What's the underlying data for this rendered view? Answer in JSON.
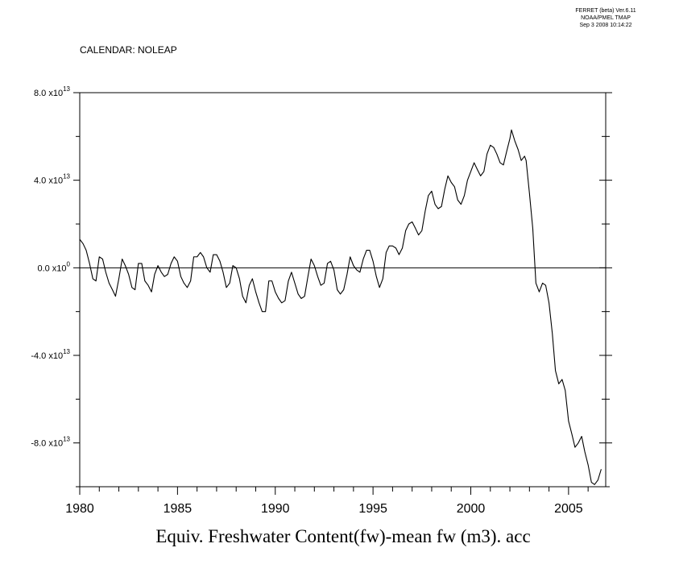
{
  "header": {
    "version_line1": "FERRET (beta) Ver.6.11",
    "version_line2": "NOAA/PMEL TMAP",
    "version_line3": "Sep 3 2008 10:14:22",
    "calendar_label": "CALENDAR: NOLEAP"
  },
  "colors": {
    "line": "#000000",
    "background": "#ffffff"
  },
  "chart_data": {
    "type": "line",
    "title": "Equiv. Freshwater Content(fw)-mean fw (m3). acc",
    "xlim": [
      1980.0,
      2006.9
    ],
    "ylim": [
      -100000000000000.0,
      80000000000000.0
    ],
    "grid": false,
    "zero_line": true,
    "x_ticks": [
      1980,
      1985,
      1990,
      1995,
      2000,
      2005
    ],
    "y_tick_labels": [
      {
        "value": 80000000000000.0,
        "mant": "8.0 x10",
        "exp": "13"
      },
      {
        "value": 40000000000000.0,
        "mant": "4.0 x10",
        "exp": "13"
      },
      {
        "value": 0,
        "mant": "0.0 x10",
        "exp": "0"
      },
      {
        "value": -40000000000000.0,
        "mant": "-4.0 x10",
        "exp": "13"
      },
      {
        "value": -80000000000000.0,
        "mant": "-8.0 x10",
        "exp": "13"
      }
    ],
    "series": [
      {
        "points": [
          [
            1980.0,
            13000000000000.0
          ],
          [
            1980.17,
            11000000000000.0
          ],
          [
            1980.33,
            8000000000000.0
          ],
          [
            1980.5,
            2000000000000.0
          ],
          [
            1980.67,
            -5000000000000.0
          ],
          [
            1980.83,
            -6000000000000.0
          ],
          [
            1981.0,
            5000000000000.0
          ],
          [
            1981.17,
            4000000000000.0
          ],
          [
            1981.33,
            -2000000000000.0
          ],
          [
            1981.5,
            -7000000000000.0
          ],
          [
            1981.67,
            -10000000000000.0
          ],
          [
            1981.83,
            -13000000000000.0
          ],
          [
            1982.0,
            -5000000000000.0
          ],
          [
            1982.17,
            4000000000000.0
          ],
          [
            1982.33,
            1000000000000.0
          ],
          [
            1982.5,
            -3000000000000.0
          ],
          [
            1982.67,
            -9000000000000.0
          ],
          [
            1982.83,
            -10000000000000.0
          ],
          [
            1983.0,
            2000000000000.0
          ],
          [
            1983.17,
            2000000000000.0
          ],
          [
            1983.33,
            -6000000000000.0
          ],
          [
            1983.5,
            -8000000000000.0
          ],
          [
            1983.67,
            -11000000000000.0
          ],
          [
            1983.83,
            -3000000000000.0
          ],
          [
            1984.0,
            1000000000000.0
          ],
          [
            1984.17,
            -2000000000000.0
          ],
          [
            1984.33,
            -4000000000000.0
          ],
          [
            1984.5,
            -3000000000000.0
          ],
          [
            1984.67,
            2000000000000.0
          ],
          [
            1984.83,
            5000000000000.0
          ],
          [
            1985.0,
            3000000000000.0
          ],
          [
            1985.17,
            -4000000000000.0
          ],
          [
            1985.33,
            -7000000000000.0
          ],
          [
            1985.5,
            -9000000000000.0
          ],
          [
            1985.67,
            -6000000000000.0
          ],
          [
            1985.83,
            5000000000000.0
          ],
          [
            1986.0,
            5000000000000.0
          ],
          [
            1986.17,
            7000000000000.0
          ],
          [
            1986.33,
            5000000000000.0
          ],
          [
            1986.5,
            0.0
          ],
          [
            1986.67,
            -2000000000000.0
          ],
          [
            1986.83,
            6000000000000.0
          ],
          [
            1987.0,
            6000000000000.0
          ],
          [
            1987.17,
            3000000000000.0
          ],
          [
            1987.33,
            -2000000000000.0
          ],
          [
            1987.5,
            -9000000000000.0
          ],
          [
            1987.67,
            -7000000000000.0
          ],
          [
            1987.83,
            1000000000000.0
          ],
          [
            1988.0,
            0.0
          ],
          [
            1988.17,
            -5000000000000.0
          ],
          [
            1988.33,
            -13000000000000.0
          ],
          [
            1988.5,
            -16000000000000.0
          ],
          [
            1988.67,
            -8000000000000.0
          ],
          [
            1988.83,
            -5000000000000.0
          ],
          [
            1989.0,
            -11000000000000.0
          ],
          [
            1989.17,
            -16000000000000.0
          ],
          [
            1989.33,
            -20000000000000.0
          ],
          [
            1989.5,
            -20000000000000.0
          ],
          [
            1989.67,
            -6000000000000.0
          ],
          [
            1989.83,
            -6000000000000.0
          ],
          [
            1990.0,
            -11000000000000.0
          ],
          [
            1990.17,
            -14000000000000.0
          ],
          [
            1990.33,
            -16000000000000.0
          ],
          [
            1990.5,
            -15000000000000.0
          ],
          [
            1990.67,
            -6000000000000.0
          ],
          [
            1990.83,
            -2000000000000.0
          ],
          [
            1991.0,
            -7000000000000.0
          ],
          [
            1991.17,
            -12000000000000.0
          ],
          [
            1991.33,
            -14000000000000.0
          ],
          [
            1991.5,
            -13000000000000.0
          ],
          [
            1991.67,
            -4000000000000.0
          ],
          [
            1991.83,
            4000000000000.0
          ],
          [
            1992.0,
            1000000000000.0
          ],
          [
            1992.17,
            -4000000000000.0
          ],
          [
            1992.33,
            -8000000000000.0
          ],
          [
            1992.5,
            -7000000000000.0
          ],
          [
            1992.67,
            2000000000000.0
          ],
          [
            1992.83,
            3000000000000.0
          ],
          [
            1993.0,
            -1000000000000.0
          ],
          [
            1993.17,
            -10000000000000.0
          ],
          [
            1993.33,
            -12000000000000.0
          ],
          [
            1993.5,
            -10000000000000.0
          ],
          [
            1993.67,
            -3000000000000.0
          ],
          [
            1993.83,
            5000000000000.0
          ],
          [
            1994.0,
            1000000000000.0
          ],
          [
            1994.17,
            -1000000000000.0
          ],
          [
            1994.33,
            -2000000000000.0
          ],
          [
            1994.5,
            4000000000000.0
          ],
          [
            1994.67,
            8000000000000.0
          ],
          [
            1994.83,
            8000000000000.0
          ],
          [
            1995.0,
            3000000000000.0
          ],
          [
            1995.17,
            -4000000000000.0
          ],
          [
            1995.33,
            -9000000000000.0
          ],
          [
            1995.5,
            -5000000000000.0
          ],
          [
            1995.67,
            7000000000000.0
          ],
          [
            1995.83,
            10000000000000.0
          ],
          [
            1996.0,
            10000000000000.0
          ],
          [
            1996.17,
            9000000000000.0
          ],
          [
            1996.33,
            6000000000000.0
          ],
          [
            1996.5,
            9000000000000.0
          ],
          [
            1996.67,
            17000000000000.0
          ],
          [
            1996.83,
            20000000000000.0
          ],
          [
            1997.0,
            21000000000000.0
          ],
          [
            1997.17,
            18000000000000.0
          ],
          [
            1997.33,
            15000000000000.0
          ],
          [
            1997.5,
            17000000000000.0
          ],
          [
            1997.67,
            26000000000000.0
          ],
          [
            1997.83,
            33000000000000.0
          ],
          [
            1998.0,
            35000000000000.0
          ],
          [
            1998.17,
            29000000000000.0
          ],
          [
            1998.33,
            27000000000000.0
          ],
          [
            1998.5,
            28000000000000.0
          ],
          [
            1998.67,
            36000000000000.0
          ],
          [
            1998.83,
            42000000000000.0
          ],
          [
            1999.0,
            39000000000000.0
          ],
          [
            1999.17,
            37000000000000.0
          ],
          [
            1999.33,
            31000000000000.0
          ],
          [
            1999.5,
            29000000000000.0
          ],
          [
            1999.67,
            33000000000000.0
          ],
          [
            1999.83,
            40000000000000.0
          ],
          [
            2000.0,
            44000000000000.0
          ],
          [
            2000.17,
            48000000000000.0
          ],
          [
            2000.33,
            45000000000000.0
          ],
          [
            2000.5,
            42000000000000.0
          ],
          [
            2000.67,
            44000000000000.0
          ],
          [
            2000.83,
            52000000000000.0
          ],
          [
            2001.0,
            56000000000000.0
          ],
          [
            2001.17,
            55000000000000.0
          ],
          [
            2001.33,
            52000000000000.0
          ],
          [
            2001.5,
            48000000000000.0
          ],
          [
            2001.67,
            47000000000000.0
          ],
          [
            2001.83,
            53000000000000.0
          ],
          [
            2002.0,
            59000000000000.0
          ],
          [
            2002.08,
            63000000000000.0
          ],
          [
            2002.25,
            58000000000000.0
          ],
          [
            2002.42,
            54000000000000.0
          ],
          [
            2002.58,
            49000000000000.0
          ],
          [
            2002.75,
            51000000000000.0
          ],
          [
            2002.83,
            49000000000000.0
          ],
          [
            2003.0,
            34000000000000.0
          ],
          [
            2003.17,
            18000000000000.0
          ],
          [
            2003.33,
            -7000000000000.0
          ],
          [
            2003.5,
            -11000000000000.0
          ],
          [
            2003.67,
            -7000000000000.0
          ],
          [
            2003.83,
            -8000000000000.0
          ],
          [
            2004.0,
            -16000000000000.0
          ],
          [
            2004.17,
            -30000000000000.0
          ],
          [
            2004.33,
            -47000000000000.0
          ],
          [
            2004.5,
            -53000000000000.0
          ],
          [
            2004.67,
            -51000000000000.0
          ],
          [
            2004.83,
            -56000000000000.0
          ],
          [
            2005.0,
            -70000000000000.0
          ],
          [
            2005.17,
            -76000000000000.0
          ],
          [
            2005.33,
            -82000000000000.0
          ],
          [
            2005.5,
            -80000000000000.0
          ],
          [
            2005.67,
            -77000000000000.0
          ],
          [
            2005.83,
            -84000000000000.0
          ],
          [
            2006.0,
            -90000000000000.0
          ],
          [
            2006.17,
            -98000000000000.0
          ],
          [
            2006.33,
            -99000000000000.0
          ],
          [
            2006.5,
            -97000000000000.0
          ],
          [
            2006.67,
            -92000000000000.0
          ]
        ]
      }
    ]
  }
}
